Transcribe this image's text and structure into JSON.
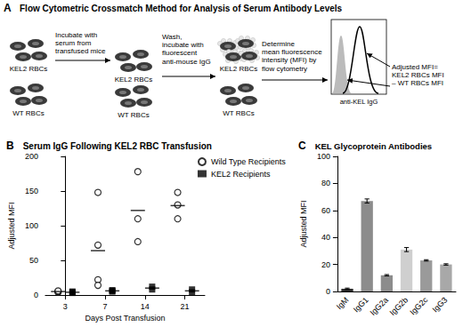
{
  "diagram": {
    "panel": "A",
    "title": "Flow Cytometric Crossmatch Method for Analysis of Serum Antibody Levels",
    "cell_groups": [
      [
        "KEL2 RBCs",
        "WT RBCs"
      ],
      [
        "KEL2 RBCs",
        "WT RBCs"
      ],
      [
        "KEL2 RBCs",
        "WT RBCs"
      ]
    ],
    "steps": [
      [
        "Incubate with",
        "serum from",
        "transfused mice"
      ],
      [
        "Wash,",
        "incubate with",
        "fluorescent",
        "anti-mouse IgG"
      ],
      [
        "Determine",
        "mean fluorescence",
        "intensity (MFI) by",
        "flow cytometry"
      ]
    ],
    "histogram_axis": "anti-KEL IgG",
    "result": [
      "Adjusted MFI=",
      "KEL2 RBCs MFI",
      "– WT RBCs MFI"
    ]
  },
  "chart_data": [
    {
      "panel": "B",
      "type": "scatter",
      "title": "Serum IgG Following KEL2 RBC Transfusion",
      "x_label": "Days Post Transfusion",
      "y_label": "Adjusted MFI",
      "categories": [
        "3",
        "7",
        "14",
        "21"
      ],
      "series": [
        {
          "name": "Wild Type Recipients",
          "marker": "circle-open",
          "color": "#000000",
          "values": [
            [
              4,
              5,
              6
            ],
            [
              148,
              72,
              22,
              14
            ],
            [
              178,
              110,
              77
            ],
            [
              148,
              130,
              110
            ]
          ],
          "means": [
            5,
            64,
            122,
            129
          ]
        },
        {
          "name": "KEL2 Recipients",
          "marker": "square",
          "color": "#000000",
          "values": [
            [
              3,
              4,
              5
            ],
            [
              5,
              6,
              7
            ],
            [
              8,
              12
            ],
            [
              4,
              8
            ]
          ],
          "means": [
            4,
            6,
            10,
            6
          ]
        }
      ],
      "ylim": [
        0,
        200
      ],
      "yticks": [
        0,
        50,
        100,
        150,
        200
      ],
      "grid": false,
      "legend": "top-right"
    },
    {
      "panel": "C",
      "type": "bar",
      "title": "KEL Glycoprotein Antibodies",
      "y_label": "Adjusted MFI",
      "categories": [
        "IgM",
        "IgG1",
        "IgG2a",
        "IgG2b",
        "IgG2c",
        "IgG3"
      ],
      "values": [
        2,
        67,
        12,
        31,
        23,
        20
      ],
      "errors": [
        0.5,
        1.5,
        0.5,
        1.5,
        0.5,
        0.5
      ],
      "colors": [
        "#2b2b2b",
        "#8c8c8c",
        "#8c8c8c",
        "#cfcfcf",
        "#9a9a9a",
        "#a8a8a8"
      ],
      "ylim": [
        0,
        100
      ],
      "yticks": [
        0,
        20,
        40,
        60,
        80,
        100
      ],
      "grid": false
    }
  ]
}
